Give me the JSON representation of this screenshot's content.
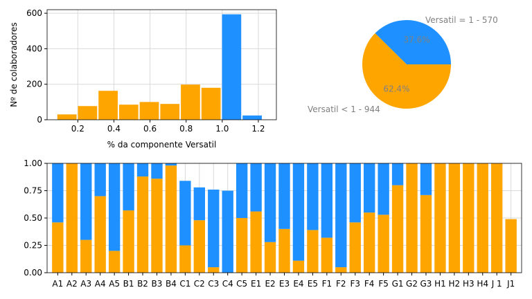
{
  "colors": {
    "orange": "#FFA500",
    "blue": "#1E90FF",
    "grid": "#d9d9d9",
    "label_gray": "#808080"
  },
  "chart_data": [
    {
      "type": "bar",
      "subtype": "histogram",
      "xlabel": "% da componente Versatil",
      "ylabel": "Nº de colaboradores",
      "xlim": [
        0.03,
        1.3
      ],
      "ylim": [
        0,
        620
      ],
      "xticks": [
        0.2,
        0.4,
        0.6,
        0.8,
        1.0,
        1.2
      ],
      "yticks": [
        0,
        200,
        400,
        600
      ],
      "xtick_labels": [
        "0.2",
        "0.4",
        "0.6",
        "0.8",
        "1.0",
        "1.2"
      ],
      "ytick_labels": [
        "0",
        "200",
        "400",
        "600"
      ],
      "grid": true,
      "bins": [
        {
          "x0": 0.083,
          "x1": 0.197,
          "value": 30,
          "color": "orange"
        },
        {
          "x0": 0.197,
          "x1": 0.311,
          "value": 77,
          "color": "orange"
        },
        {
          "x0": 0.311,
          "x1": 0.425,
          "value": 163,
          "color": "orange"
        },
        {
          "x0": 0.425,
          "x1": 0.539,
          "value": 85,
          "color": "orange"
        },
        {
          "x0": 0.539,
          "x1": 0.653,
          "value": 100,
          "color": "orange"
        },
        {
          "x0": 0.653,
          "x1": 0.767,
          "value": 89,
          "color": "orange"
        },
        {
          "x0": 0.767,
          "x1": 0.881,
          "value": 198,
          "color": "orange"
        },
        {
          "x0": 0.881,
          "x1": 0.995,
          "value": 180,
          "color": "orange"
        },
        {
          "x0": 0.995,
          "x1": 1.109,
          "value": 594,
          "color": "blue"
        },
        {
          "x0": 1.109,
          "x1": 1.223,
          "value": 24,
          "color": "blue"
        }
      ]
    },
    {
      "type": "pie",
      "slices": [
        {
          "label": "Versatil = 1 - 570",
          "value": 37.6,
          "pct_label": "37.6%",
          "color": "blue"
        },
        {
          "label": "Versatil < 1 - 944",
          "value": 62.4,
          "pct_label": "62.4%",
          "color": "orange"
        }
      ]
    },
    {
      "type": "bar",
      "subtype": "stacked",
      "categories": [
        "A1",
        "A2",
        "A3",
        "A4",
        "A5",
        "B1",
        "B2",
        "B3",
        "B4",
        "C1",
        "C2",
        "C3",
        "C4",
        "C5",
        "E1",
        "E2",
        "E3",
        "E4",
        "E5",
        "F1",
        "F2",
        "F3",
        "F4",
        "F5",
        "G1",
        "G2",
        "G3",
        "H1",
        "H2",
        "H3",
        "H4",
        "J 1",
        "J1"
      ],
      "ylim": [
        0,
        1.0
      ],
      "yticks": [
        0,
        0.25,
        0.5,
        0.75,
        1.0
      ],
      "ytick_labels": [
        "0.00",
        "0.25",
        "0.50",
        "0.75",
        "1.00"
      ],
      "grid": true,
      "series": [
        {
          "color": "orange",
          "values": [
            0.46,
            1.0,
            0.3,
            0.7,
            0.2,
            0.57,
            0.88,
            0.86,
            0.98,
            0.25,
            0.48,
            0.05,
            0.0,
            0.5,
            0.56,
            0.28,
            0.4,
            0.11,
            0.39,
            0.32,
            0.05,
            0.46,
            0.55,
            0.53,
            0.8,
            1.0,
            0.71,
            1.0,
            1.0,
            1.0,
            1.0,
            1.0,
            0.49
          ]
        },
        {
          "color": "blue",
          "values": [
            0.54,
            0.0,
            0.7,
            0.3,
            0.8,
            0.43,
            0.12,
            0.14,
            0.02,
            0.59,
            0.3,
            0.71,
            0.75,
            0.5,
            0.44,
            0.72,
            0.6,
            0.89,
            0.61,
            0.68,
            0.95,
            0.54,
            0.45,
            0.47,
            0.2,
            0.0,
            0.29,
            0.0,
            0.0,
            0.0,
            0.0,
            0.0,
            0.0
          ]
        }
      ]
    }
  ]
}
